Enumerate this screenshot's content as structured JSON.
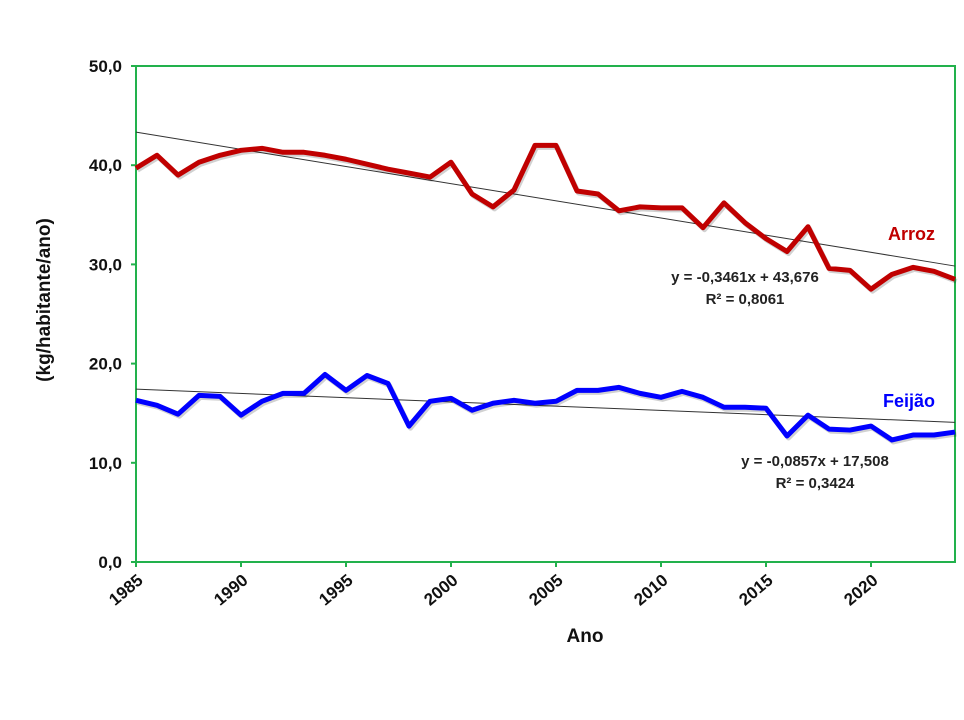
{
  "chart_data": {
    "type": "line",
    "title": "",
    "xlabel": "Ano",
    "ylabel": "(kg/habitante/ano)",
    "ylim": [
      0,
      50
    ],
    "xlim": [
      1985,
      2024
    ],
    "yticks": [
      "0,0",
      "10,0",
      "20,0",
      "30,0",
      "40,0",
      "50,0"
    ],
    "ytick_values": [
      0,
      10,
      20,
      30,
      40,
      50
    ],
    "xticks": [
      "1985",
      "1990",
      "1995",
      "2000",
      "2005",
      "2010",
      "2015",
      "2020"
    ],
    "xtick_values": [
      1985,
      1990,
      1995,
      2000,
      2005,
      2010,
      2015,
      2020
    ],
    "grid": false,
    "x": [
      1985,
      1986,
      1987,
      1988,
      1989,
      1990,
      1991,
      1992,
      1993,
      1994,
      1995,
      1996,
      1997,
      1998,
      1999,
      2000,
      2001,
      2002,
      2003,
      2004,
      2005,
      2006,
      2007,
      2008,
      2009,
      2010,
      2011,
      2012,
      2013,
      2014,
      2015,
      2016,
      2017,
      2018,
      2019,
      2020,
      2021,
      2022,
      2023,
      2024
    ],
    "series": [
      {
        "name": "Arroz",
        "color": "#c00000",
        "values": [
          39.7,
          41.0,
          39.0,
          40.3,
          41.0,
          41.5,
          41.7,
          41.3,
          41.3,
          41.0,
          40.6,
          40.1,
          39.6,
          39.2,
          38.8,
          40.3,
          37.1,
          35.8,
          37.5,
          42.0,
          42.0,
          37.4,
          37.1,
          35.4,
          35.8,
          35.7,
          35.7,
          33.7,
          36.2,
          34.2,
          32.6,
          31.3,
          33.8,
          29.6,
          29.4,
          27.5,
          29.0,
          29.7,
          29.3,
          28.5
        ],
        "trend": {
          "slope": -0.3461,
          "intercept": 43.676,
          "equation": "y = -0,3461x + 43,676",
          "r2": "R² = 0,8061"
        }
      },
      {
        "name": "Feijão",
        "color": "#0000ff",
        "values": [
          16.3,
          15.8,
          14.9,
          16.8,
          16.7,
          14.8,
          16.2,
          17.0,
          17.0,
          18.9,
          17.3,
          18.8,
          18.0,
          13.7,
          16.2,
          16.5,
          15.3,
          16.0,
          16.3,
          16.0,
          16.2,
          17.3,
          17.3,
          17.6,
          17.0,
          16.6,
          17.2,
          16.6,
          15.6,
          15.6,
          15.5,
          12.7,
          14.8,
          13.4,
          13.3,
          13.7,
          12.3,
          12.8,
          12.8,
          13.1
        ],
        "trend": {
          "slope": -0.0857,
          "intercept": 17.508,
          "equation": "y = -0,0857x + 17,508",
          "r2": "R² = 0,3424"
        }
      }
    ],
    "legend": "inline labels at right of each series"
  }
}
